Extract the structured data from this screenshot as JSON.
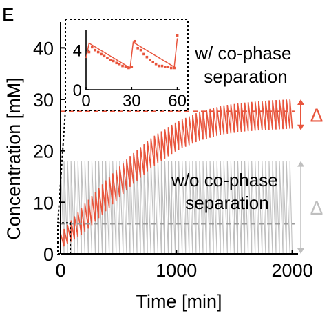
{
  "panel_label": "E",
  "colors": {
    "red": "#e8553d",
    "gray_fill": "#d8d8d8",
    "gray_line": "#bfbfbf",
    "gray_dash": "#9a9a9a",
    "axis": "#000000"
  },
  "chart_data": [
    {
      "id": "main",
      "type": "line",
      "title": "",
      "xlabel": "Time [min]",
      "ylabel": "Concentration [mM]",
      "xlim": [
        0,
        2050
      ],
      "ylim": [
        0,
        45
      ],
      "xticks": [
        0,
        1000,
        2000
      ],
      "yticks": [
        0,
        10,
        20,
        30,
        40
      ],
      "grid": false,
      "series": [
        {
          "name": "w/ co-phase separation",
          "color": "#e8553d",
          "pattern": "sawtooth",
          "period_min": 30,
          "x_start": 0,
          "x_end": 2000,
          "envelope_upper": {
            "x": [
              0,
              200,
              400,
              600,
              800,
              1000,
              1200,
              1400,
              1600,
              1800,
              2000
            ],
            "y": [
              4,
              9.5,
              14.5,
              19,
              22.8,
              25.6,
              27.6,
              28.8,
              29.4,
              29.8,
              30
            ]
          },
          "envelope_lower": {
            "x": [
              0,
              200,
              400,
              600,
              800,
              1000,
              1200,
              1400,
              1600,
              1800,
              2000
            ],
            "y": [
              1,
              4,
              8.5,
              13,
              17,
              20,
              22,
              23.2,
              23.8,
              24.1,
              24.3
            ]
          }
        },
        {
          "name": "w/o co-phase separation",
          "color": "#bfbfbf",
          "pattern": "sawtooth",
          "period_min": 30,
          "x_start": 0,
          "x_end": 2000,
          "envelope_upper": {
            "x": [
              0,
              2000
            ],
            "y": [
              18,
              18
            ]
          },
          "envelope_lower": {
            "x": [
              0,
              2000
            ],
            "y": [
              0,
              0
            ]
          }
        }
      ],
      "reference_lines": [
        {
          "y": 27.7,
          "style": "dashed",
          "color": "#e8553d"
        },
        {
          "y": 5.8,
          "style": "dashed",
          "color": "#9a9a9a"
        }
      ],
      "annotations": [
        {
          "text": "w/ co-phase\nseparation",
          "color": "#000000"
        },
        {
          "text": "w/o co-phase\nseparation",
          "color": "#000000"
        },
        {
          "text": "Δ",
          "color": "#e8553d",
          "spans_y": [
            24,
            30
          ]
        },
        {
          "text": "Δ",
          "color": "#bfbfbf",
          "spans_y": [
            0,
            18
          ]
        }
      ],
      "zoom_box": {
        "x": [
          0,
          60
        ],
        "y": [
          0,
          6
        ]
      }
    },
    {
      "id": "inset",
      "type": "line",
      "xlim": [
        0,
        62
      ],
      "ylim": [
        0,
        6
      ],
      "xticks": [
        0,
        30,
        60
      ],
      "yticks": [
        0,
        4
      ],
      "grid": false,
      "series": [
        {
          "name": "model",
          "color": "#e8553d",
          "style": "line",
          "x": [
            0,
            2,
            29,
            31,
            58,
            60
          ],
          "y": [
            3.2,
            4.7,
            2.2,
            4.8,
            2.3,
            5.2
          ]
        },
        {
          "name": "data",
          "color": "#e8553d",
          "style": "points",
          "x": [
            2,
            4,
            6,
            8,
            10,
            12,
            14,
            16,
            18,
            20,
            22,
            24,
            26,
            28,
            30,
            32,
            34,
            36,
            38,
            40,
            42,
            44,
            46,
            48,
            50,
            52,
            54,
            56,
            58,
            60
          ],
          "y": [
            3.8,
            4.3,
            4.0,
            3.8,
            3.6,
            3.4,
            3.2,
            3.0,
            2.9,
            2.7,
            2.6,
            2.4,
            2.3,
            2.2,
            2.3,
            4.9,
            4.2,
            4.0,
            3.6,
            3.3,
            3.0,
            2.8,
            2.6,
            2.4,
            2.4,
            2.3,
            2.3,
            2.2,
            2.2,
            5.5
          ]
        }
      ]
    }
  ]
}
